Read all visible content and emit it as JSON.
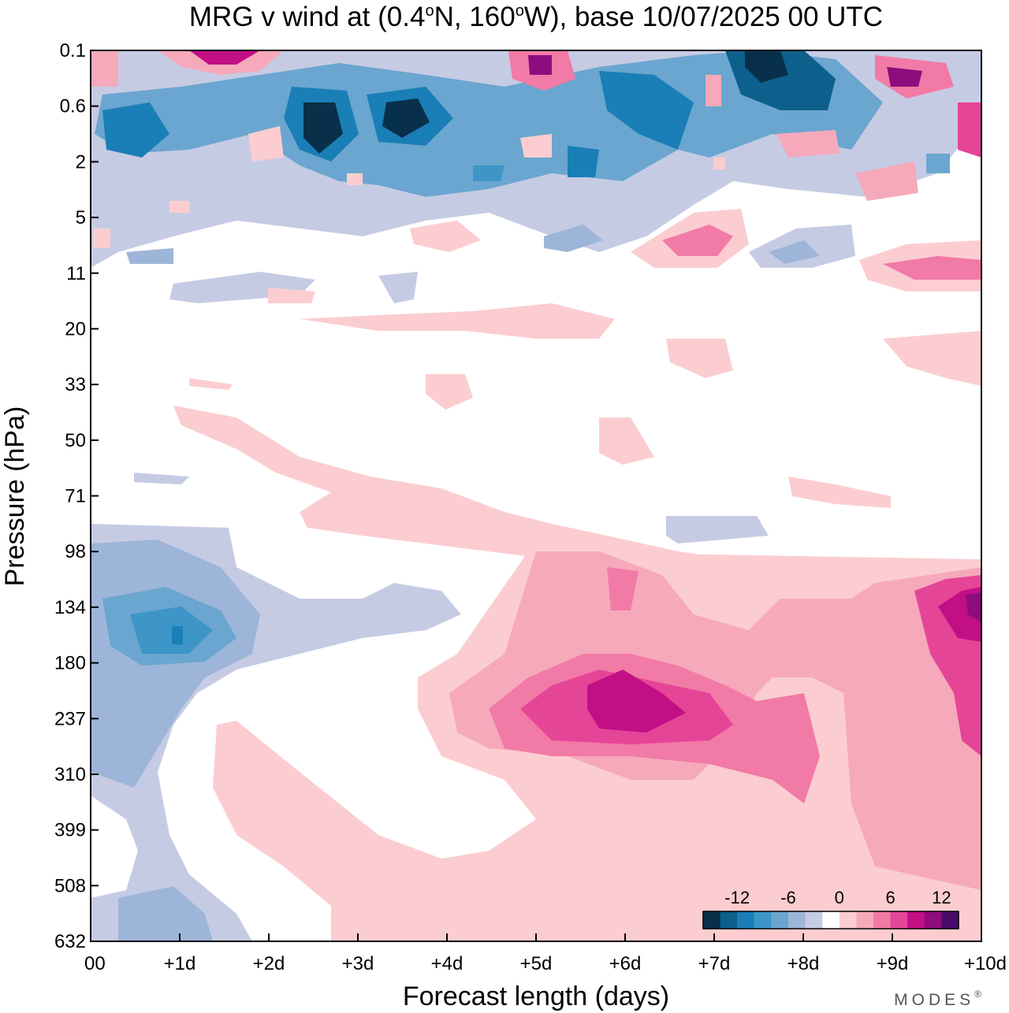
{
  "chart_data": {
    "type": "heatmap",
    "title": "MRG v wind at (0.4°N, 160°W),  base 10/07/2025  00 UTC",
    "title_parts": {
      "lead": "MRG v wind at (0.4",
      "deg1": "o",
      "mid": "N, 160",
      "deg2": "o",
      "tail": "W),  base 10/07/2025  00 UTC"
    },
    "xlabel": "Forecast length (days)",
    "ylabel": "Pressure (hPa)",
    "x_ticks": [
      "00",
      "+1d",
      "+2d",
      "+3d",
      "+4d",
      "+5d",
      "+6d",
      "+7d",
      "+8d",
      "+9d",
      "+10d"
    ],
    "x_range": [
      0,
      10
    ],
    "y_ticks": [
      "0.1",
      "0.6",
      "2",
      "5",
      "11",
      "20",
      "33",
      "50",
      "71",
      "98",
      "134",
      "180",
      "237",
      "310",
      "399",
      "508",
      "632"
    ],
    "y_scale": "log-pressure",
    "y_range": [
      0.1,
      632
    ],
    "grid": false,
    "colorbar": {
      "placement": "bottom-right",
      "labels": [
        "-12",
        "-6",
        "0",
        "6",
        "12"
      ],
      "colors": [
        "#08304a",
        "#0d5f8c",
        "#1a7fb6",
        "#3d95c8",
        "#6aa6cf",
        "#9db5d8",
        "#c6cbe4",
        "#ffffff",
        "#fbcdd0",
        "#f6a9bb",
        "#f17aa6",
        "#e54597",
        "#c20f86",
        "#8e0c7e",
        "#4a0a6a"
      ]
    },
    "v_wind_features": [
      {
        "x": 1.0,
        "p": 150,
        "v": -10
      },
      {
        "x": 6.0,
        "p": 230,
        "v": 11
      },
      {
        "x": 9.9,
        "p": 140,
        "v": 12
      },
      {
        "x": 2.5,
        "p": 1.0,
        "v": -12
      },
      {
        "x": 3.5,
        "p": 0.9,
        "v": -11
      },
      {
        "x": 7.5,
        "p": 0.2,
        "v": -12
      },
      {
        "x": 5.0,
        "p": 0.2,
        "v": 9
      }
    ],
    "brand": "MODES",
    "brand_mark": "®"
  }
}
